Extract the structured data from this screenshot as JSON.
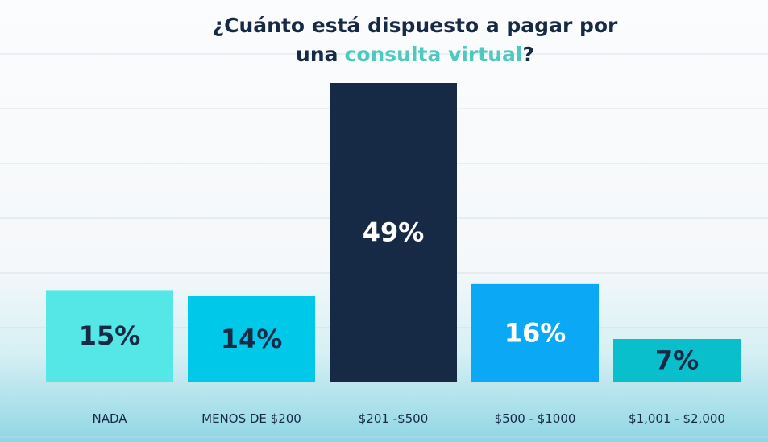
{
  "chart_data": {
    "type": "bar",
    "title": [
      "¿Cuánto está dispuesto a pagar por",
      "una",
      "consulta virtual",
      "?"
    ],
    "title_highlight_color": "#4fc9c0",
    "categories": [
      "NADA",
      "MENOS DE $200",
      "$201 -$500",
      "$500 - $1000",
      "$1,001 - $2,000"
    ],
    "values": [
      15,
      14,
      49,
      16,
      7
    ],
    "value_labels": [
      "15%",
      "14%",
      "49%",
      "16%",
      "7%"
    ],
    "colors": [
      "#55e6e6",
      "#00c8e8",
      "#172a45",
      "#0aa8f5",
      "#0abfcc"
    ],
    "label_colors": [
      "#172a45",
      "#172a45",
      "#ffffff",
      "#ffffff",
      "#172a45"
    ]
  }
}
